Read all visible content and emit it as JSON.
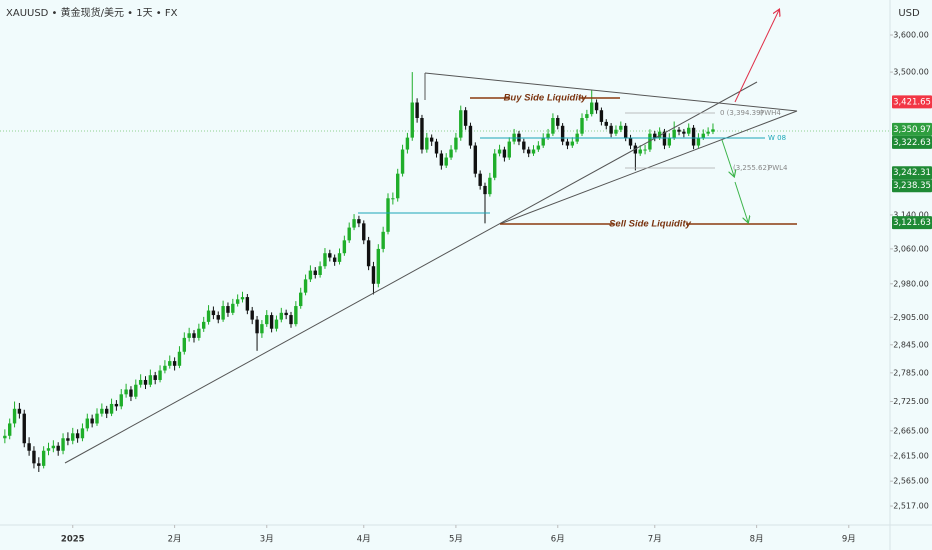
{
  "chart_data": {
    "type": "candlestick",
    "title": "XAUUSD • 黄金现货/美元 • 1天 • FX",
    "y_label": "USD",
    "log_scale": true,
    "ylim": [
      2481,
      3697
    ],
    "xlim": [
      -1,
      182.5
    ],
    "yticks": [
      {
        "value": 3600,
        "label": "3,600.00"
      },
      {
        "value": 3500,
        "label": "3,500.00"
      },
      {
        "value": 3140,
        "label": "3,140.00"
      },
      {
        "value": 3060,
        "label": "3,060.00"
      },
      {
        "value": 2980,
        "label": "2,980.00"
      },
      {
        "value": 2905,
        "label": "2,905.00"
      },
      {
        "value": 2845,
        "label": "2,845.00"
      },
      {
        "value": 2785,
        "label": "2,785.00"
      },
      {
        "value": 2725,
        "label": "2,725.00"
      },
      {
        "value": 2665,
        "label": "2,665.00"
      },
      {
        "value": 2615,
        "label": "2,615.00"
      },
      {
        "value": 2565,
        "label": "2,565.00"
      },
      {
        "value": 2517,
        "label": "2,517.00"
      }
    ],
    "xticks": [
      {
        "value": 14,
        "label": "2025"
      },
      {
        "value": 35,
        "label": "2月"
      },
      {
        "value": 54,
        "label": "3月"
      },
      {
        "value": 74,
        "label": "4月"
      },
      {
        "value": 93,
        "label": "5月"
      },
      {
        "value": 114,
        "label": "6月"
      },
      {
        "value": 134,
        "label": "7月"
      },
      {
        "value": 155,
        "label": "8月"
      },
      {
        "value": 174,
        "label": "9月"
      }
    ],
    "up_color": "#1fae2a",
    "down_color": "#111111",
    "candles": [
      [
        2650,
        2668,
        2640,
        2655
      ],
      [
        2655,
        2690,
        2648,
        2680
      ],
      [
        2680,
        2725,
        2672,
        2710
      ],
      [
        2710,
        2722,
        2690,
        2700
      ],
      [
        2700,
        2708,
        2632,
        2640
      ],
      [
        2640,
        2652,
        2615,
        2625
      ],
      [
        2625,
        2634,
        2590,
        2600
      ],
      [
        2600,
        2612,
        2583,
        2595
      ],
      [
        2595,
        2634,
        2590,
        2625
      ],
      [
        2625,
        2641,
        2616,
        2630
      ],
      [
        2630,
        2646,
        2622,
        2635
      ],
      [
        2635,
        2642,
        2615,
        2625
      ],
      [
        2625,
        2660,
        2618,
        2650
      ],
      [
        2650,
        2662,
        2636,
        2645
      ],
      [
        2645,
        2671,
        2638,
        2660
      ],
      [
        2660,
        2668,
        2641,
        2650
      ],
      [
        2650,
        2680,
        2644,
        2670
      ],
      [
        2670,
        2700,
        2664,
        2690
      ],
      [
        2690,
        2698,
        2672,
        2680
      ],
      [
        2680,
        2711,
        2675,
        2700
      ],
      [
        2700,
        2721,
        2694,
        2710
      ],
      [
        2710,
        2716,
        2691,
        2700
      ],
      [
        2700,
        2731,
        2695,
        2720
      ],
      [
        2720,
        2728,
        2706,
        2715
      ],
      [
        2715,
        2751,
        2709,
        2740
      ],
      [
        2740,
        2762,
        2733,
        2750
      ],
      [
        2750,
        2757,
        2726,
        2735
      ],
      [
        2735,
        2771,
        2730,
        2760
      ],
      [
        2760,
        2782,
        2754,
        2770
      ],
      [
        2770,
        2778,
        2751,
        2760
      ],
      [
        2760,
        2792,
        2755,
        2780
      ],
      [
        2780,
        2787,
        2761,
        2770
      ],
      [
        2770,
        2801,
        2765,
        2790
      ],
      [
        2790,
        2812,
        2784,
        2800
      ],
      [
        2800,
        2822,
        2794,
        2810
      ],
      [
        2810,
        2818,
        2790,
        2800
      ],
      [
        2800,
        2842,
        2795,
        2830
      ],
      [
        2830,
        2872,
        2824,
        2860
      ],
      [
        2860,
        2882,
        2852,
        2870
      ],
      [
        2870,
        2877,
        2850,
        2860
      ],
      [
        2860,
        2891,
        2854,
        2880
      ],
      [
        2880,
        2906,
        2873,
        2895
      ],
      [
        2895,
        2932,
        2889,
        2920
      ],
      [
        2920,
        2929,
        2901,
        2910
      ],
      [
        2910,
        2918,
        2892,
        2900
      ],
      [
        2900,
        2942,
        2895,
        2930
      ],
      [
        2930,
        2938,
        2906,
        2915
      ],
      [
        2915,
        2946,
        2910,
        2935
      ],
      [
        2935,
        2956,
        2929,
        2945
      ],
      [
        2945,
        2962,
        2938,
        2950
      ],
      [
        2950,
        2957,
        2912,
        2920
      ],
      [
        2920,
        2928,
        2890,
        2900
      ],
      [
        2900,
        2908,
        2832,
        2870
      ],
      [
        2870,
        2899,
        2860,
        2890
      ],
      [
        2890,
        2921,
        2884,
        2910
      ],
      [
        2910,
        2916,
        2872,
        2880
      ],
      [
        2880,
        2909,
        2874,
        2900
      ],
      [
        2900,
        2926,
        2894,
        2915
      ],
      [
        2915,
        2922,
        2901,
        2910
      ],
      [
        2910,
        2917,
        2882,
        2890
      ],
      [
        2890,
        2941,
        2885,
        2930
      ],
      [
        2930,
        2971,
        2924,
        2960
      ],
      [
        2960,
        3001,
        2954,
        2990
      ],
      [
        2990,
        3022,
        2984,
        3010
      ],
      [
        3010,
        3018,
        2992,
        3000
      ],
      [
        3000,
        3031,
        2994,
        3020
      ],
      [
        3020,
        3062,
        3014,
        3050
      ],
      [
        3050,
        3058,
        3031,
        3040
      ],
      [
        3040,
        3047,
        3021,
        3030
      ],
      [
        3030,
        3061,
        3024,
        3050
      ],
      [
        3050,
        3091,
        3044,
        3080
      ],
      [
        3080,
        3122,
        3074,
        3110
      ],
      [
        3110,
        3142,
        3104,
        3130
      ],
      [
        3130,
        3138,
        3111,
        3120
      ],
      [
        3120,
        3127,
        3071,
        3080
      ],
      [
        3080,
        3088,
        3011,
        3020
      ],
      [
        3020,
        3030,
        2956,
        2980
      ],
      [
        2980,
        3071,
        2972,
        3060
      ],
      [
        3060,
        3112,
        3052,
        3100
      ],
      [
        3100,
        3192,
        3094,
        3180
      ],
      [
        3180,
        3194,
        3165,
        3180
      ],
      [
        3180,
        3252,
        3172,
        3240
      ],
      [
        3240,
        3312,
        3233,
        3300
      ],
      [
        3300,
        3342,
        3290,
        3330
      ],
      [
        3330,
        3500,
        3322,
        3420
      ],
      [
        3420,
        3431,
        3368,
        3380
      ],
      [
        3380,
        3388,
        3290,
        3300
      ],
      [
        3300,
        3342,
        3292,
        3330
      ],
      [
        3330,
        3338,
        3309,
        3320
      ],
      [
        3320,
        3327,
        3280,
        3290
      ],
      [
        3290,
        3298,
        3250,
        3260
      ],
      [
        3260,
        3291,
        3254,
        3280
      ],
      [
        3280,
        3311,
        3274,
        3300
      ],
      [
        3300,
        3342,
        3293,
        3330
      ],
      [
        3330,
        3412,
        3322,
        3400
      ],
      [
        3400,
        3408,
        3350,
        3360
      ],
      [
        3360,
        3368,
        3302,
        3310
      ],
      [
        3310,
        3318,
        3231,
        3240
      ],
      [
        3240,
        3248,
        3201,
        3210
      ],
      [
        3210,
        3218,
        3120,
        3190
      ],
      [
        3190,
        3242,
        3184,
        3230
      ],
      [
        3230,
        3301,
        3224,
        3290
      ],
      [
        3290,
        3312,
        3283,
        3300
      ],
      [
        3300,
        3307,
        3270,
        3280
      ],
      [
        3280,
        3331,
        3274,
        3320
      ],
      [
        3320,
        3352,
        3313,
        3340
      ],
      [
        3340,
        3347,
        3311,
        3320
      ],
      [
        3320,
        3327,
        3291,
        3300
      ],
      [
        3300,
        3307,
        3281,
        3290
      ],
      [
        3290,
        3311,
        3284,
        3300
      ],
      [
        3300,
        3321,
        3294,
        3310
      ],
      [
        3310,
        3341,
        3304,
        3330
      ],
      [
        3330,
        3352,
        3324,
        3340
      ],
      [
        3340,
        3392,
        3334,
        3380
      ],
      [
        3380,
        3387,
        3351,
        3360
      ],
      [
        3360,
        3367,
        3311,
        3320
      ],
      [
        3320,
        3327,
        3301,
        3310
      ],
      [
        3310,
        3331,
        3304,
        3320
      ],
      [
        3320,
        3351,
        3314,
        3340
      ],
      [
        3340,
        3392,
        3334,
        3380
      ],
      [
        3380,
        3401,
        3373,
        3390
      ],
      [
        3390,
        3452,
        3384,
        3420
      ],
      [
        3420,
        3428,
        3391,
        3400
      ],
      [
        3400,
        3407,
        3361,
        3370
      ],
      [
        3370,
        3377,
        3351,
        3360
      ],
      [
        3360,
        3367,
        3331,
        3340
      ],
      [
        3340,
        3361,
        3334,
        3350
      ],
      [
        3350,
        3371,
        3344,
        3360
      ],
      [
        3360,
        3367,
        3321,
        3330
      ],
      [
        3330,
        3337,
        3301,
        3310
      ],
      [
        3310,
        3317,
        3248,
        3290
      ],
      [
        3290,
        3311,
        3284,
        3300
      ],
      [
        3300,
        3312,
        3288,
        3300
      ],
      [
        3300,
        3351,
        3294,
        3340
      ],
      [
        3340,
        3347,
        3321,
        3330
      ],
      [
        3330,
        3356,
        3324,
        3345
      ],
      [
        3345,
        3352,
        3301,
        3310
      ],
      [
        3310,
        3341,
        3304,
        3330
      ],
      [
        3330,
        3371,
        3324,
        3350
      ],
      [
        3350,
        3357,
        3336,
        3345
      ],
      [
        3345,
        3352,
        3331,
        3340
      ],
      [
        3340,
        3366,
        3334,
        3355
      ],
      [
        3355,
        3362,
        3301,
        3310
      ],
      [
        3310,
        3341,
        3304,
        3330
      ],
      [
        3330,
        3351,
        3324,
        3340
      ],
      [
        3340,
        3356,
        3334,
        3345
      ],
      [
        3345,
        3366,
        3339,
        3350.97
      ]
    ],
    "price_labels": [
      {
        "value": 3421.65,
        "label": "3,421.65",
        "color": "#f23645"
      },
      {
        "value": 3350.97,
        "label": "3,350.97",
        "color": "#2e9e3f"
      },
      {
        "value": 3322.63,
        "label": "3,322.63",
        "color": "#1f8a35"
      },
      {
        "value": 3242.31,
        "label": "3,242.31",
        "color": "#1f8a35"
      },
      {
        "value": 3238.35,
        "label": "3,238.35",
        "color": "#1f8a35"
      },
      {
        "value": 3121.63,
        "label": "3,121.63",
        "color": "#1f8a35"
      }
    ],
    "annotations": {
      "buy_side": "Buy Side Liquidity",
      "sell_side": "Sell Side Liquidity",
      "w08": "W 08",
      "pwh_value": "0 (3,394.39)",
      "pwh": "PWH4",
      "pwl_value": "(3,255.62)",
      "pwl": "PWL4"
    }
  }
}
